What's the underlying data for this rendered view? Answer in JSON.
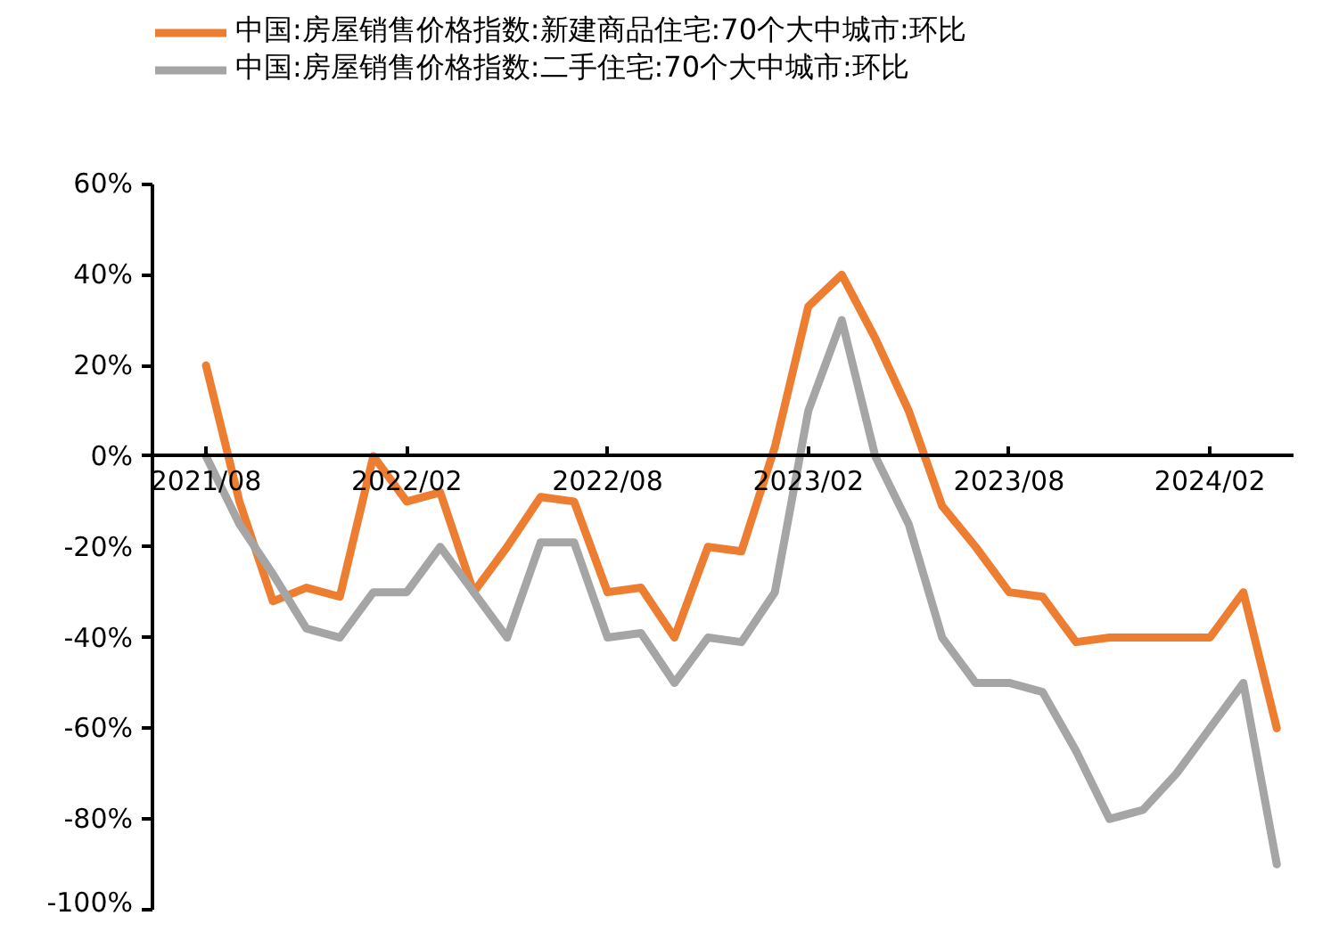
{
  "chart_data": {
    "type": "line",
    "categories": [
      "2021/08",
      null,
      null,
      null,
      null,
      null,
      "2022/02",
      null,
      null,
      null,
      null,
      null,
      "2022/08",
      null,
      null,
      null,
      null,
      null,
      "2023/02",
      null,
      null,
      null,
      null,
      null,
      "2023/08",
      null,
      null,
      null,
      null,
      null,
      "2024/02",
      null,
      null
    ],
    "series": [
      {
        "name": "中国:房屋销售价格指数:新建商品住宅:70个大中城市:环比",
        "color": "#ed7d31",
        "values": [
          20,
          -10,
          -32,
          -29,
          -31,
          0,
          -10,
          -8,
          -30,
          -20,
          -9,
          -10,
          -30,
          -29,
          -40,
          -20,
          -21,
          2,
          33,
          40,
          26,
          10,
          -11,
          -20,
          -30,
          -31,
          -41,
          -40,
          -40,
          -40,
          -40,
          -30,
          -60
        ]
      },
      {
        "name": "中国:房屋销售价格指数:二手住宅:70个大中城市:环比",
        "color": "#a5a5a5",
        "values": [
          0,
          -15,
          -26,
          -38,
          -40,
          -30,
          -30,
          -20,
          -30,
          -40,
          -19,
          -19,
          -40,
          -39,
          -50,
          -40,
          -41,
          -30,
          10,
          30,
          0,
          -15,
          -40,
          -50,
          -50,
          -52,
          -65,
          -80,
          -78,
          -70,
          -60,
          -50,
          -90
        ]
      }
    ],
    "ylim": [
      -100,
      60
    ],
    "yticks": [
      {
        "value": -100,
        "label": "-100%"
      },
      {
        "value": -80,
        "label": "-80%"
      },
      {
        "value": -60,
        "label": "-60%"
      },
      {
        "value": -40,
        "label": "-40%"
      },
      {
        "value": -20,
        "label": "-20%"
      },
      {
        "value": 0,
        "label": "0%"
      },
      {
        "value": 20,
        "label": "20%"
      },
      {
        "value": 40,
        "label": "40%"
      },
      {
        "value": 60,
        "label": "60%"
      }
    ],
    "grid": false,
    "legend": "top",
    "marker": "none",
    "line_style": "solid"
  }
}
